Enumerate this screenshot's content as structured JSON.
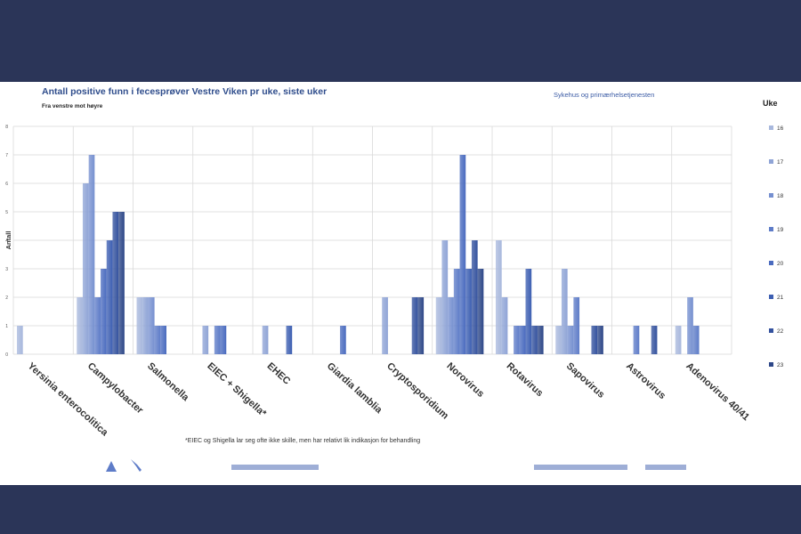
{
  "header": {
    "title": "Antall positive funn i fecesprøver Vestre Viken pr uke, siste uker",
    "subtitle": "Fra venstre mot høyre",
    "source": "Sykehus og primærhelsetjenesten"
  },
  "footnote": "*EIEC og Shigella lar seg ofte ikke skille, men har relativt lik indikasjon for behandling",
  "chart_data": {
    "type": "bar",
    "ylabel": "Antall",
    "ylim": [
      0,
      8
    ],
    "yticks": [
      "0",
      "1",
      "2",
      "3",
      "4",
      "5",
      "6",
      "7",
      "8"
    ],
    "grid": true,
    "legend_title": "Uke",
    "legend_position": "right",
    "categories": [
      "Yersinia enterocolitica",
      "Campylobacter",
      "Salmonella",
      "EIEC + Shigella*",
      "EHEC",
      "Giardia lamblia",
      "Cryptosporidium",
      "Norovirus",
      "Rotavirus",
      "Sapovirus",
      "Astrovirus",
      "Adenovirus 40/41"
    ],
    "series": [
      {
        "name": "16",
        "color": "#a8b8dd",
        "values": [
          1,
          2,
          2,
          0,
          0,
          0,
          0,
          2,
          4,
          1,
          0,
          1
        ]
      },
      {
        "name": "17",
        "color": "#8fa4d6",
        "values": [
          0,
          6,
          2,
          1,
          1,
          0,
          2,
          4,
          2,
          3,
          0,
          0
        ]
      },
      {
        "name": "18",
        "color": "#7690d0",
        "values": [
          0,
          7,
          2,
          0,
          0,
          0,
          0,
          2,
          0,
          1,
          0,
          2
        ]
      },
      {
        "name": "19",
        "color": "#5e7cc8",
        "values": [
          0,
          2,
          1,
          1,
          0,
          0,
          0,
          3,
          1,
          2,
          1,
          1
        ]
      },
      {
        "name": "20",
        "color": "#4a6bbf",
        "values": [
          0,
          3,
          1,
          1,
          0,
          1,
          0,
          7,
          1,
          0,
          0,
          0
        ]
      },
      {
        "name": "21",
        "color": "#3d5fb2",
        "values": [
          0,
          4,
          0,
          0,
          1,
          0,
          0,
          3,
          3,
          0,
          0,
          0
        ]
      },
      {
        "name": "22",
        "color": "#34529e",
        "values": [
          0,
          5,
          0,
          0,
          0,
          0,
          2,
          4,
          1,
          1,
          1,
          0
        ]
      },
      {
        "name": "23",
        "color": "#2d4788",
        "values": [
          0,
          5,
          0,
          0,
          0,
          0,
          2,
          3,
          1,
          1,
          0,
          0
        ]
      }
    ]
  }
}
